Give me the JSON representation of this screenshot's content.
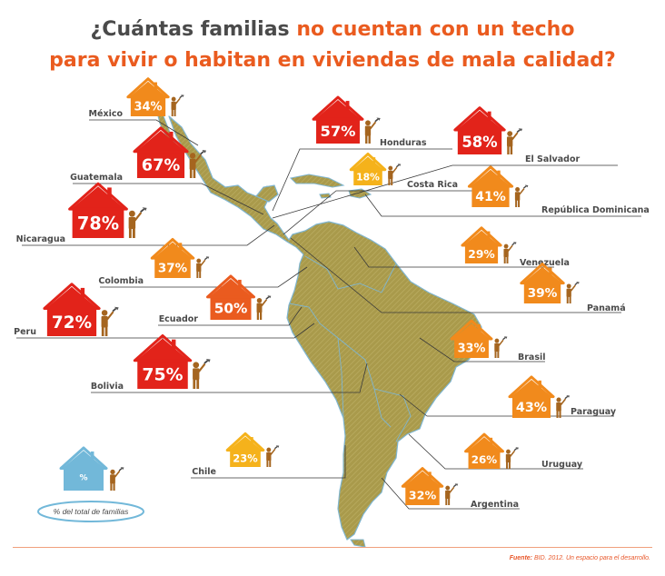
{
  "title": {
    "part1": "¿Cuántas familias ",
    "part2": "no cuentan con un techo",
    "line2": "para vivir o habitan en viviendas de mala calidad?"
  },
  "legend": {
    "symbol": "%",
    "caption": "% del total de familias"
  },
  "source": {
    "label": "Fuente:",
    "text": "BID. 2012. Un espacio para el desarrollo."
  },
  "colors": {
    "high": "#e2231a",
    "mid": "#ea5b1f",
    "low": "#f18a1c",
    "lowest": "#f5b21b",
    "legend": "#72b8d9",
    "map": "#a99a4b",
    "figure": "#a5651f"
  },
  "chart_data": {
    "type": "bar",
    "categories": [
      "México",
      "Honduras",
      "El Salvador",
      "Guatemala",
      "Costa Rica",
      "República Dominicana",
      "Nicaragua",
      "Venezuela",
      "Colombia",
      "Panamá",
      "Ecuador",
      "Peru",
      "Brasil",
      "Bolivia",
      "Paraguay",
      "Uruguay",
      "Chile",
      "Argentina"
    ],
    "values": [
      34,
      57,
      58,
      67,
      18,
      41,
      78,
      29,
      37,
      39,
      50,
      72,
      33,
      75,
      43,
      26,
      23,
      32
    ],
    "unit": "%"
  }
}
